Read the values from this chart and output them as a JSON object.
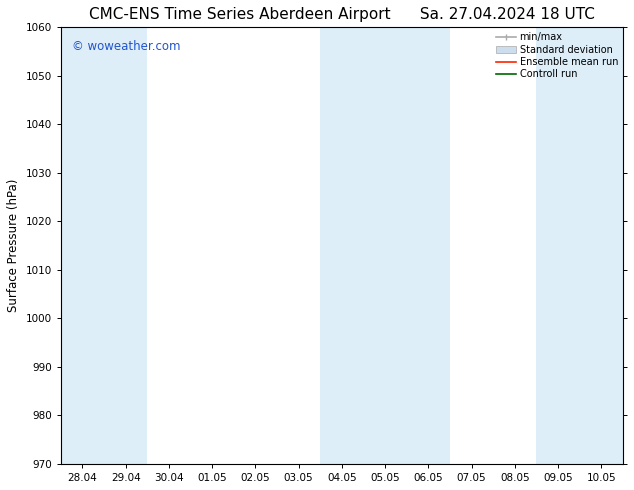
{
  "title_left": "CMC-ENS Time Series Aberdeen Airport",
  "title_right": "Sa. 27.04.2024 18 UTC",
  "ylabel": "Surface Pressure (hPa)",
  "ylim": [
    970,
    1060
  ],
  "yticks": [
    970,
    980,
    990,
    1000,
    1010,
    1020,
    1030,
    1040,
    1050,
    1060
  ],
  "xtick_labels": [
    "28.04",
    "29.04",
    "30.04",
    "01.05",
    "02.05",
    "03.05",
    "04.05",
    "05.05",
    "06.05",
    "07.05",
    "08.05",
    "09.05",
    "10.05"
  ],
  "shaded_ranges": [
    [
      0,
      1
    ],
    [
      6,
      8
    ],
    [
      11,
      12
    ]
  ],
  "shaded_color": "#ddeef8",
  "watermark_text": "© woweather.com",
  "watermark_color": "#2255cc",
  "legend_items": [
    {
      "label": "min/max",
      "color": "#aaaaaa"
    },
    {
      "label": "Standard deviation",
      "color": "#ccddee"
    },
    {
      "label": "Ensemble mean run",
      "color": "#ff2200"
    },
    {
      "label": "Controll run",
      "color": "#006600"
    }
  ],
  "bg_color": "#ffffff",
  "spine_color": "#444444",
  "title_fontsize": 11,
  "tick_fontsize": 7.5,
  "ylabel_fontsize": 8.5
}
